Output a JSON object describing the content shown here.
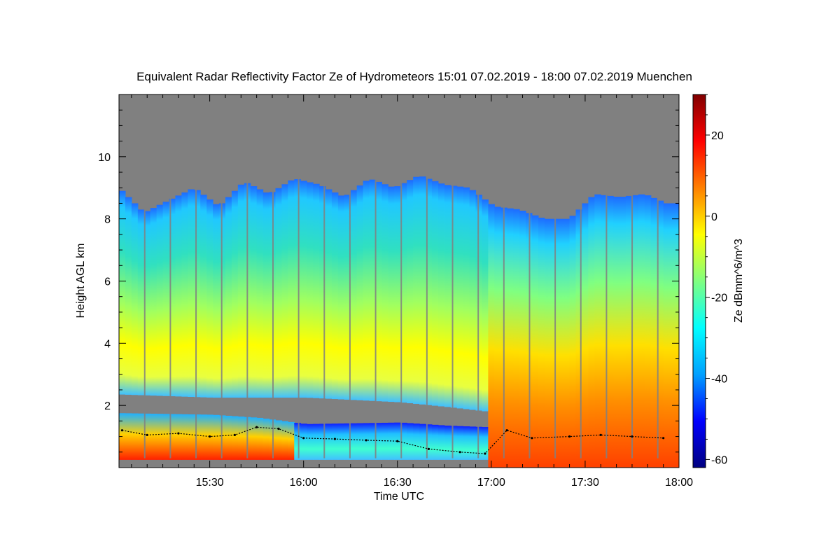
{
  "chart_data": {
    "type": "heatmap",
    "title": "Equivalent Radar Reflectivity Factor Ze of Hydrometeors    15:01 07.02.2019 - 18:00 07.02.2019 Muenchen",
    "xlabel": "Time UTC",
    "ylabel": "Height AGL km",
    "colorbar_label": "Ze dBmm^6/m^3",
    "x_ticks": [
      "15:30",
      "16:00",
      "16:30",
      "17:00",
      "17:30",
      "18:00"
    ],
    "x_tick_minutes": [
      30,
      60,
      90,
      120,
      150,
      180
    ],
    "xlim_minutes": [
      1,
      180
    ],
    "y_ticks": [
      2,
      4,
      6,
      8,
      10
    ],
    "ylim": [
      0,
      12
    ],
    "colorbar_ticks": [
      20,
      0,
      -20,
      -40,
      -60
    ],
    "colorbar_ticks_labels": [
      "20",
      "0",
      "-20",
      "-40",
      "-60"
    ],
    "colorbar_range": [
      -62,
      30
    ],
    "no_signal_color": "#808080",
    "colormap": [
      "#000080",
      "#0000ff",
      "#00a0ff",
      "#00ffff",
      "#80ff80",
      "#ffff00",
      "#ff8000",
      "#ff0000",
      "#800000"
    ],
    "echo_top_km": [
      {
        "t": 1,
        "h": 8.9
      },
      {
        "t": 8,
        "h": 8.2
      },
      {
        "t": 16,
        "h": 8.6
      },
      {
        "t": 24,
        "h": 9.0
      },
      {
        "t": 32,
        "h": 8.4
      },
      {
        "t": 40,
        "h": 9.2
      },
      {
        "t": 48,
        "h": 8.8
      },
      {
        "t": 56,
        "h": 9.3
      },
      {
        "t": 64,
        "h": 9.1
      },
      {
        "t": 72,
        "h": 8.7
      },
      {
        "t": 80,
        "h": 9.3
      },
      {
        "t": 88,
        "h": 9.0
      },
      {
        "t": 96,
        "h": 9.4
      },
      {
        "t": 104,
        "h": 9.1
      },
      {
        "t": 112,
        "h": 9.0
      },
      {
        "t": 120,
        "h": 8.4
      },
      {
        "t": 128,
        "h": 8.3
      },
      {
        "t": 136,
        "h": 8.0
      },
      {
        "t": 144,
        "h": 8.0
      },
      {
        "t": 152,
        "h": 8.8
      },
      {
        "t": 160,
        "h": 8.7
      },
      {
        "t": 168,
        "h": 8.8
      },
      {
        "t": 175,
        "h": 8.5
      },
      {
        "t": 180,
        "h": 8.5
      }
    ],
    "gap_bottom_km": [
      {
        "t": 1,
        "h": 2.35
      },
      {
        "t": 30,
        "h": 2.25
      },
      {
        "t": 60,
        "h": 2.25
      },
      {
        "t": 90,
        "h": 2.1
      },
      {
        "t": 105,
        "h": 1.95
      },
      {
        "t": 118,
        "h": 1.8
      }
    ],
    "gap_top_km": [
      {
        "t": 1,
        "h": 1.75
      },
      {
        "t": 30,
        "h": 1.7
      },
      {
        "t": 45,
        "h": 1.6
      },
      {
        "t": 60,
        "h": 1.4
      },
      {
        "t": 90,
        "h": 1.45
      },
      {
        "t": 105,
        "h": 1.35
      },
      {
        "t": 118,
        "h": 1.3
      }
    ],
    "cloud_base_points_km": [
      {
        "t": 2,
        "h": 1.2
      },
      {
        "t": 10,
        "h": 1.05
      },
      {
        "t": 20,
        "h": 1.1
      },
      {
        "t": 30,
        "h": 1.0
      },
      {
        "t": 38,
        "h": 1.05
      },
      {
        "t": 45,
        "h": 1.3
      },
      {
        "t": 52,
        "h": 1.25
      },
      {
        "t": 60,
        "h": 0.95
      },
      {
        "t": 70,
        "h": 0.92
      },
      {
        "t": 80,
        "h": 0.88
      },
      {
        "t": 90,
        "h": 0.85
      },
      {
        "t": 100,
        "h": 0.6
      },
      {
        "t": 110,
        "h": 0.5
      },
      {
        "t": 118,
        "h": 0.45
      },
      {
        "t": 125,
        "h": 1.2
      },
      {
        "t": 133,
        "h": 0.95
      },
      {
        "t": 145,
        "h": 1.0
      },
      {
        "t": 155,
        "h": 1.05
      },
      {
        "t": 165,
        "h": 1.0
      },
      {
        "t": 175,
        "h": 0.95
      }
    ]
  }
}
